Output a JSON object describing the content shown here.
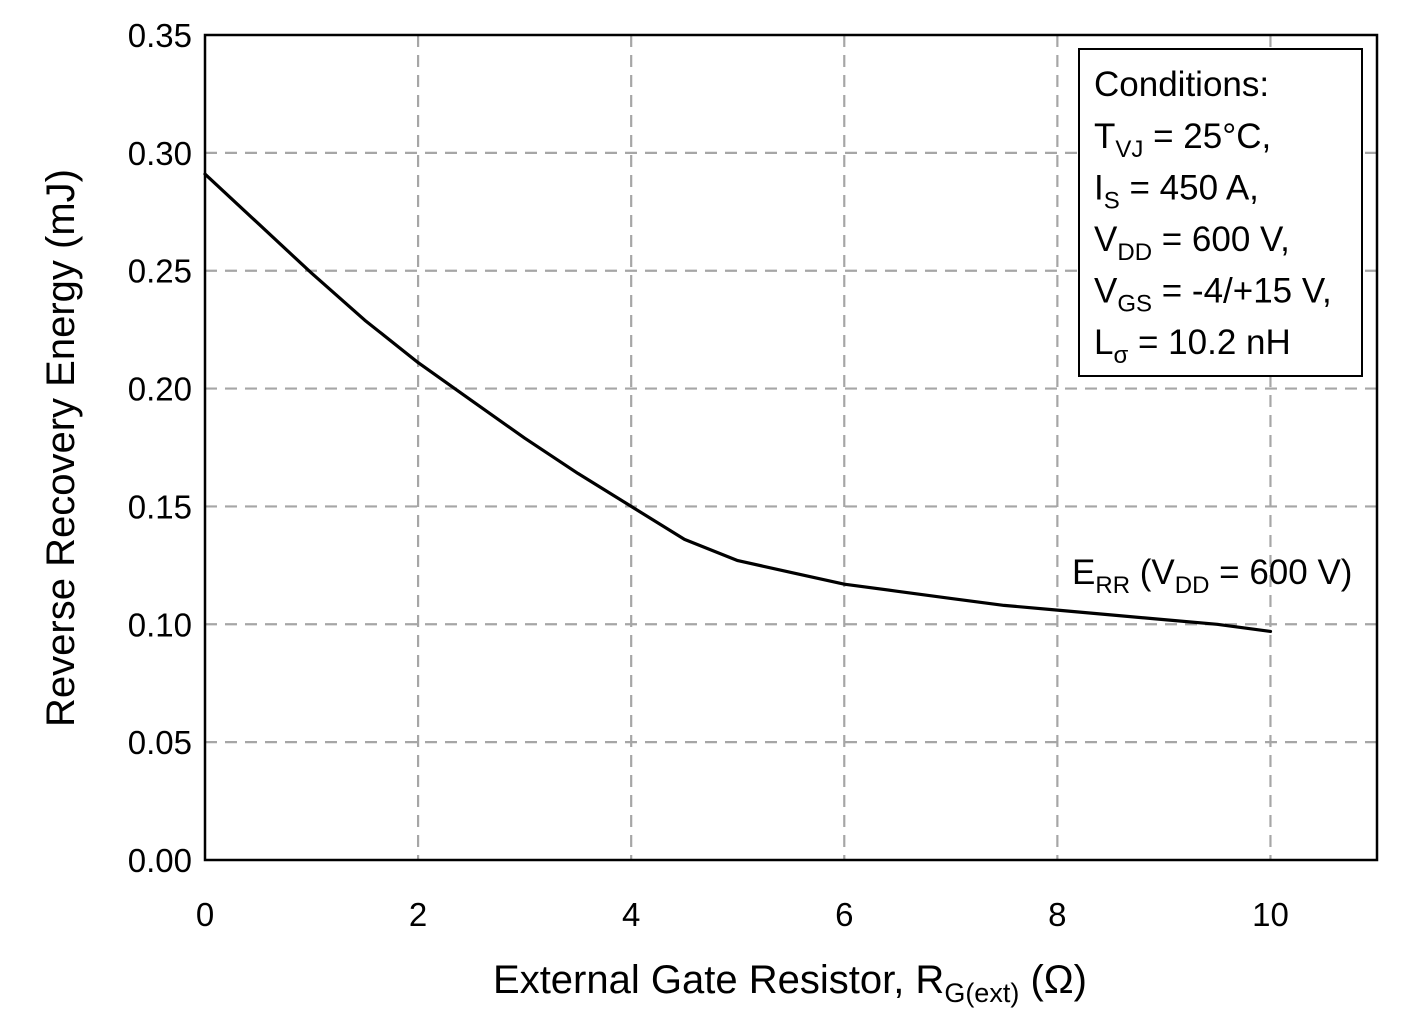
{
  "chart_data": {
    "type": "line",
    "xlabel": {
      "main": "External Gate Resistor, R",
      "sub": "G(ext)",
      "unit": " (Ω)"
    },
    "ylabel": "Reverse Recovery Energy (mJ)",
    "xlim": [
      0,
      11
    ],
    "ylim": [
      0,
      0.35
    ],
    "x_ticks": [
      "0",
      "2",
      "4",
      "6",
      "8",
      "10"
    ],
    "y_ticks": [
      "0.00",
      "0.05",
      "0.10",
      "0.15",
      "0.20",
      "0.25",
      "0.30",
      "0.35"
    ],
    "grid": true,
    "series": [
      {
        "name": {
          "main": "E",
          "sub": "RR",
          "rest1": " (V",
          "sub2": "DD",
          "rest2": " = 600 V)"
        },
        "color": "#000000",
        "x": [
          0,
          0.5,
          1,
          1.5,
          2,
          2.5,
          3,
          3.5,
          4,
          4.5,
          5,
          5.5,
          6,
          6.5,
          7,
          7.5,
          8,
          8.5,
          9,
          9.5,
          10
        ],
        "y": [
          0.291,
          0.27,
          0.249,
          0.229,
          0.211,
          0.195,
          0.179,
          0.164,
          0.15,
          0.136,
          0.127,
          0.122,
          0.117,
          0.114,
          0.111,
          0.108,
          0.106,
          0.104,
          0.102,
          0.1,
          0.097
        ]
      }
    ],
    "annotation": {
      "title": "Conditions:",
      "lines": [
        {
          "main": "T",
          "sub": "VJ",
          "rest": " = 25°C,"
        },
        {
          "main": "I",
          "sub": "S",
          "rest": " = 450 A,"
        },
        {
          "main": "V",
          "sub": "DD",
          "rest": " = 600 V,"
        },
        {
          "main": "V",
          "sub": "GS",
          "rest": " = -4/+15 V,"
        },
        {
          "main": "L",
          "sub": "σ",
          "rest": " = 10.2 nH"
        }
      ]
    }
  }
}
